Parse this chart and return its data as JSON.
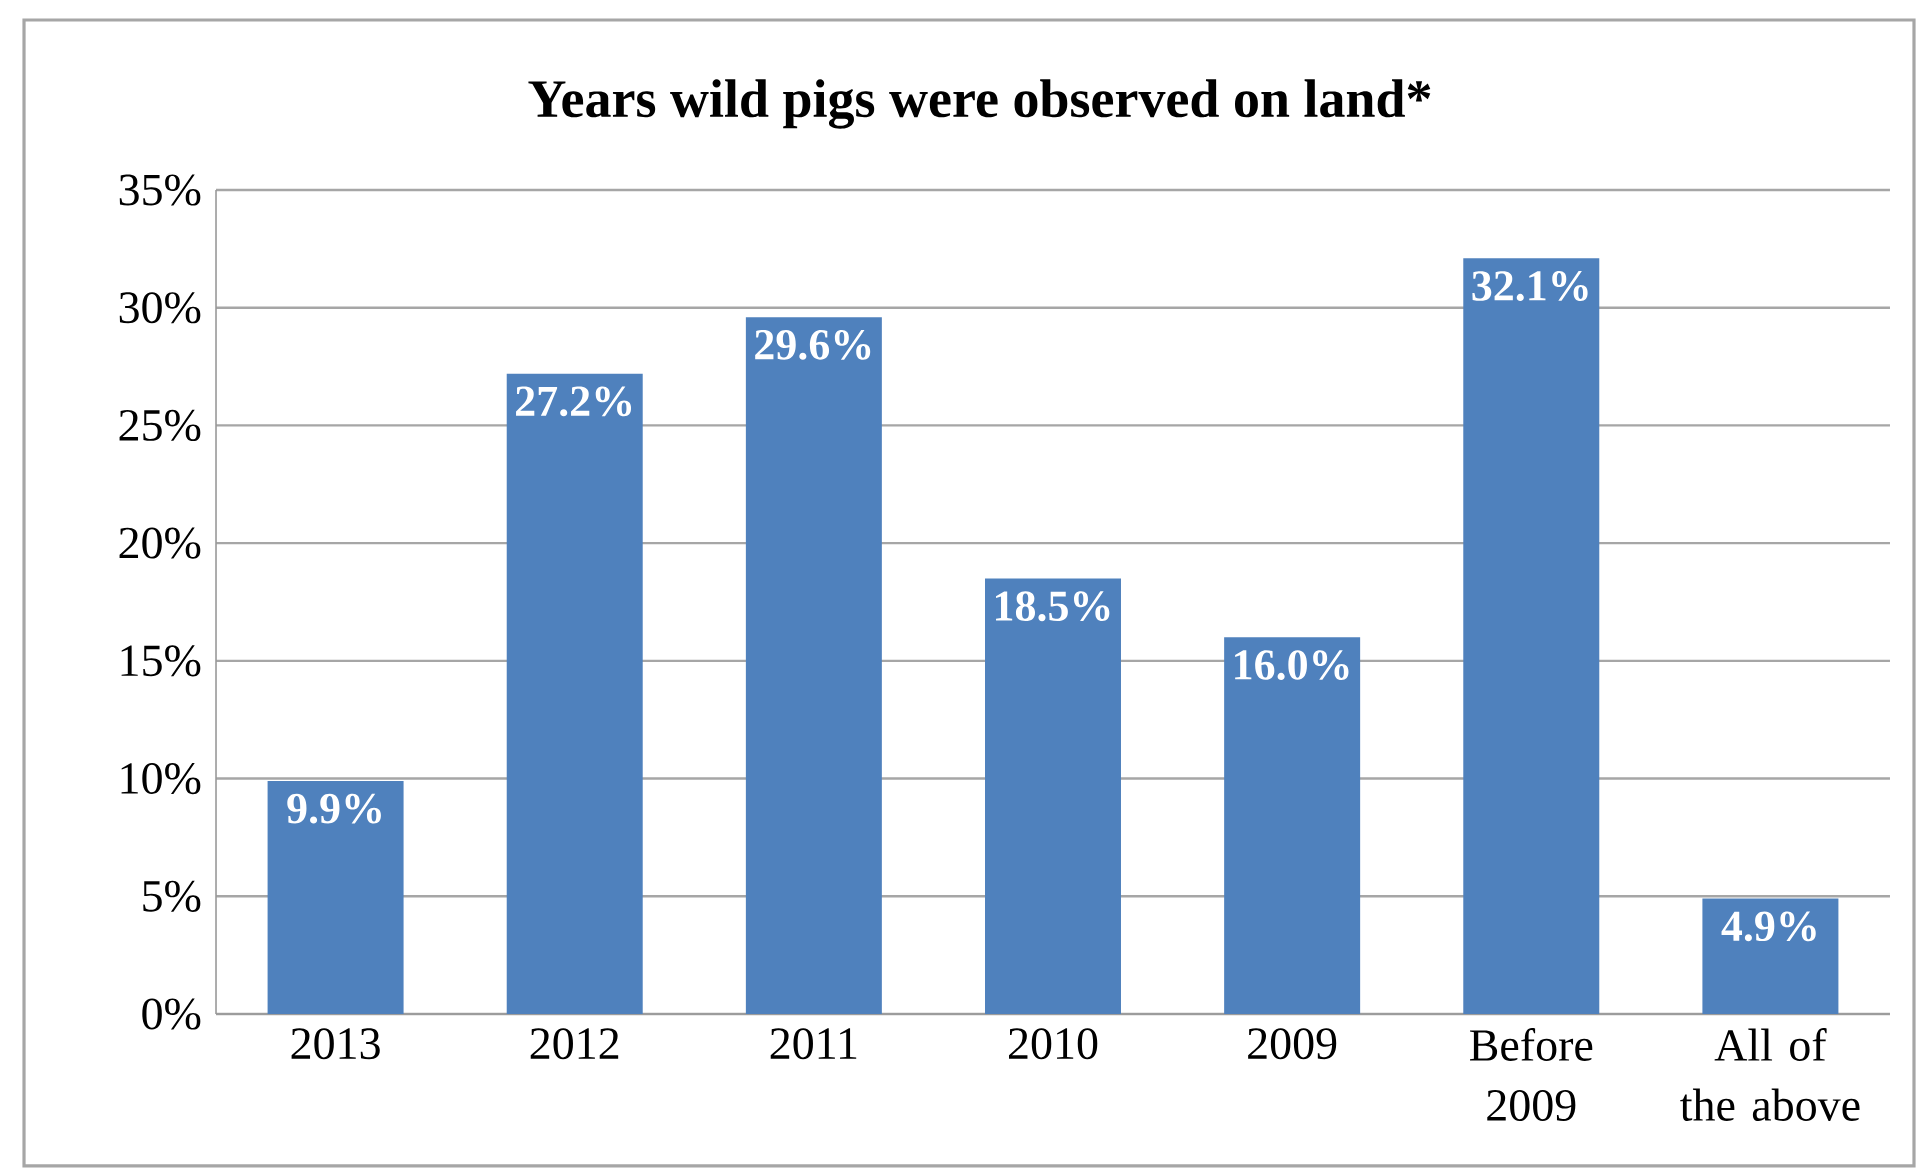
{
  "chart_data": {
    "type": "bar",
    "title": "Years wild pigs were observed on land*",
    "categories": [
      "2013",
      "2012",
      "2011",
      "2010",
      "2009",
      "Before 2009",
      "All of the above"
    ],
    "values": [
      9.9,
      27.2,
      29.6,
      18.5,
      16.0,
      32.1,
      4.9
    ],
    "value_labels": [
      "9.9%",
      "27.2%",
      "29.6%",
      "18.5%",
      "16.0%",
      "32.1%",
      "4.9%"
    ],
    "color": "#4f81bd",
    "ylim": [
      0,
      35
    ],
    "yticks": [
      {
        "value": 0,
        "label": "0%"
      },
      {
        "value": 5,
        "label": "5%"
      },
      {
        "value": 10,
        "label": "10%"
      },
      {
        "value": 15,
        "label": "15%"
      },
      {
        "value": 20,
        "label": "20%"
      },
      {
        "value": 25,
        "label": "25%"
      },
      {
        "value": 30,
        "label": "30%"
      },
      {
        "value": 35,
        "label": "35%"
      }
    ],
    "grid": "y"
  }
}
